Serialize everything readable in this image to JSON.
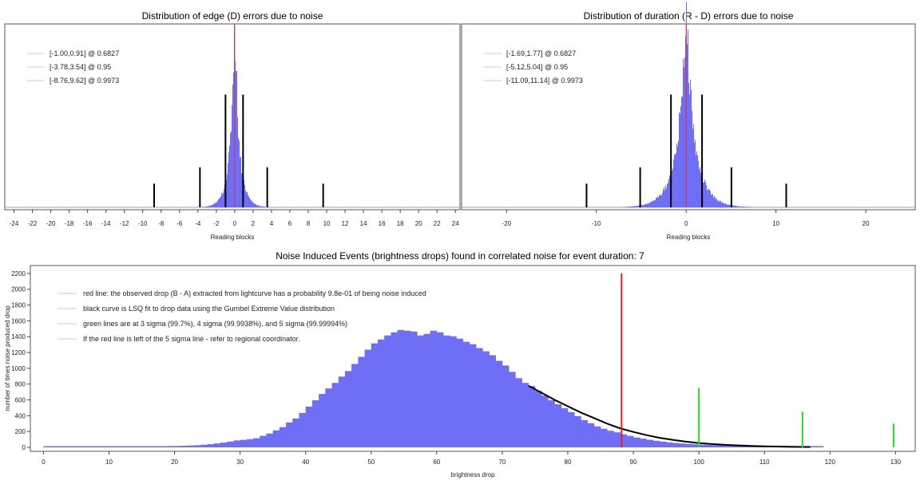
{
  "chart_data": [
    {
      "type": "histogram",
      "title": "Distribution of edge (D) errors due to noise",
      "xlabel": "Reading blocks",
      "xlim": [
        -25,
        24.5
      ],
      "xticks": [
        -24,
        -22,
        -20,
        -18,
        -16,
        -14,
        -12,
        -10,
        -8,
        -6,
        -4,
        -2,
        0,
        2,
        4,
        6,
        8,
        10,
        12,
        14,
        16,
        18,
        20,
        22,
        24
      ],
      "tick_labels": [
        "-24",
        "-22",
        "-20",
        "-18",
        "-16",
        "-14",
        "-12",
        "-10",
        "-8",
        "-6",
        "-4",
        "-2",
        "0",
        "2",
        "4",
        "6",
        "8",
        "10",
        "12",
        "14",
        "16",
        "18",
        "20",
        "22",
        "24"
      ],
      "fill_color": "#6e6ef6",
      "center_line": {
        "x": 0,
        "color": "#e03030"
      },
      "distribution": {
        "center": 0,
        "peak": 1.0,
        "width": 0.6
      },
      "legend_position": "top-left",
      "legend": [
        "[-1.00,0.91] @ 0.6827",
        "[-3.78,3.54] @ 0.95",
        "[-8.76,9.62] @ 0.9973"
      ],
      "intervals": [
        {
          "lo": -1.0,
          "hi": 0.91,
          "level": 0.6827,
          "height": 0.62
        },
        {
          "lo": -3.78,
          "hi": 3.54,
          "level": 0.95,
          "height": 0.22
        },
        {
          "lo": -8.76,
          "hi": 9.62,
          "level": 0.9973,
          "height": 0.13
        }
      ]
    },
    {
      "type": "histogram",
      "title": "Distribution of duration (R - D) errors due to noise",
      "xlabel": "Reading blocks",
      "xlim": [
        -25,
        25.5
      ],
      "xticks": [
        -20,
        -10,
        0,
        10,
        20
      ],
      "tick_labels": [
        "-20",
        "-10",
        "0",
        "10",
        "20"
      ],
      "fill_color": "#6e6ef6",
      "center_line": {
        "x": 0,
        "color": "#e03030"
      },
      "distribution": {
        "center": 0,
        "peak": 1.0,
        "width": 1.2
      },
      "legend_position": "top-left",
      "legend": [
        "[-1.69,1.77] @ 0.6827",
        "[-5.12,5.04] @ 0.95",
        "[-11.09,11.14] @ 0.9973"
      ],
      "intervals": [
        {
          "lo": -1.69,
          "hi": 1.77,
          "level": 0.6827,
          "height": 0.62
        },
        {
          "lo": -5.12,
          "hi": 5.04,
          "level": 0.95,
          "height": 0.22
        },
        {
          "lo": -11.09,
          "hi": 11.14,
          "level": 0.9973,
          "height": 0.13
        }
      ]
    },
    {
      "type": "histogram",
      "title": "Noise Induced Events (brightness drops) found in correlated noise for event duration: 7",
      "xlabel": "brightness drop",
      "ylabel": "number of times noise produced drop",
      "xlim": [
        -2,
        133
      ],
      "ylim": [
        -50,
        2300
      ],
      "xticks": [
        0,
        10,
        20,
        30,
        40,
        50,
        60,
        70,
        80,
        90,
        100,
        110,
        120,
        130
      ],
      "tick_labels": [
        "0",
        "10",
        "20",
        "30",
        "40",
        "50",
        "60",
        "70",
        "80",
        "90",
        "100",
        "110",
        "120",
        "130"
      ],
      "yticks": [
        0,
        200,
        400,
        600,
        800,
        1000,
        1200,
        1400,
        1600,
        1800,
        2000,
        2200
      ],
      "ytick_labels": [
        "0",
        "200",
        "400",
        "600",
        "800",
        "1000",
        "1200",
        "1400",
        "1600",
        "1800",
        "2000",
        "2200"
      ],
      "fill_color": "#6e6ef6",
      "legend_position": "top-left",
      "legend": [
        "red line: the observed drop (B - A) extracted from lightcurve has a probability 9.8e-01 of being noise induced",
        "black curve is LSQ fit to drop data using the Gumbel Extreme Value distribution",
        "green lines are at 3 sigma (99.7%), 4 sigma (99.9938%), and 5 sigma (99.99994%)",
        "If the red line is left of the 5 sigma line - refer to regional coordinator."
      ],
      "bins": {
        "start": 0,
        "width": 1,
        "values": [
          0,
          0,
          0,
          0,
          0,
          0,
          0,
          0,
          0,
          0,
          0,
          0,
          0,
          0,
          0,
          0,
          0,
          0,
          1,
          2,
          3,
          5,
          8,
          12,
          18,
          25,
          34,
          45,
          58,
          72,
          80,
          88,
          100,
          130,
          160,
          200,
          240,
          300,
          350,
          420,
          500,
          580,
          660,
          730,
          800,
          880,
          950,
          1040,
          1130,
          1220,
          1300,
          1350,
          1400,
          1440,
          1470,
          1460,
          1450,
          1400,
          1420,
          1460,
          1440,
          1400,
          1390,
          1360,
          1320,
          1290,
          1240,
          1200,
          1150,
          1080,
          1020,
          940,
          860,
          800,
          760,
          700,
          640,
          580,
          530,
          480,
          430,
          380,
          330,
          290,
          250,
          220,
          195,
          175,
          150,
          130,
          110,
          95,
          80,
          68,
          58,
          48,
          40,
          34,
          28,
          24,
          20,
          17,
          14,
          12,
          10,
          8,
          7,
          6,
          5,
          4,
          3,
          3,
          2,
          2,
          2,
          1,
          1,
          1,
          1
        ]
      },
      "fit_curve": {
        "x": [
          74,
          76,
          78,
          80,
          82,
          84,
          86,
          88,
          90,
          92,
          94,
          96,
          98,
          100,
          102,
          104,
          106,
          108,
          110,
          112,
          114,
          116,
          117
        ],
        "y": [
          780,
          690,
          600,
          520,
          440,
          370,
          300,
          240,
          195,
          155,
          120,
          95,
          72,
          55,
          42,
          32,
          24,
          18,
          13,
          10,
          7,
          5,
          4
        ]
      },
      "observed_drop": {
        "x": 88.2,
        "y": 2200,
        "color": "#e02020"
      },
      "sigma_lines": [
        {
          "x": 100,
          "y": 750,
          "color": "#22dd22"
        },
        {
          "x": 115.8,
          "y": 450,
          "color": "#22dd22"
        },
        {
          "x": 129.7,
          "y": 300,
          "color": "#22dd22"
        }
      ]
    }
  ]
}
